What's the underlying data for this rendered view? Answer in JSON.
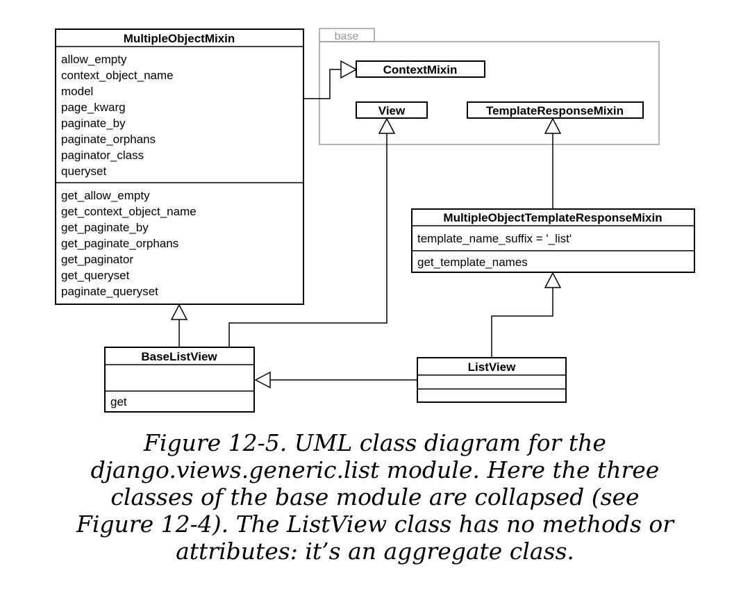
{
  "package": {
    "name": "base"
  },
  "classes": {
    "multiple_object_mixin": {
      "name": "MultipleObjectMixin",
      "attributes": [
        "allow_empty",
        "context_object_name",
        "model",
        "page_kwarg",
        "paginate_by",
        "paginate_orphans",
        "paginator_class",
        "queryset"
      ],
      "methods": [
        "get_allow_empty",
        "get_context_object_name",
        "get_paginate_by",
        "get_paginate_orphans",
        "get_paginator",
        "get_queryset",
        "paginate_queryset"
      ]
    },
    "context_mixin": {
      "name": "ContextMixin"
    },
    "view": {
      "name": "View"
    },
    "template_response_mixin": {
      "name": "TemplateResponseMixin"
    },
    "multiple_object_template_response_mixin": {
      "name": "MultipleObjectTemplateResponseMixin",
      "attributes": [
        "template_name_suffix = '_list'"
      ],
      "methods": [
        "get_template_names"
      ]
    },
    "base_list_view": {
      "name": "BaseListView",
      "attributes": [],
      "methods": [
        "get"
      ]
    },
    "list_view": {
      "name": "ListView",
      "attributes": [],
      "methods": []
    }
  },
  "caption": {
    "lines": [
      "Figure 12-5. UML class diagram for the",
      "django.views.generic.list module. Here the three",
      "classes of the base module are collapsed (see",
      "Figure 12-4). The ListView class has no methods or",
      "attributes: it’s an aggregate class."
    ]
  }
}
